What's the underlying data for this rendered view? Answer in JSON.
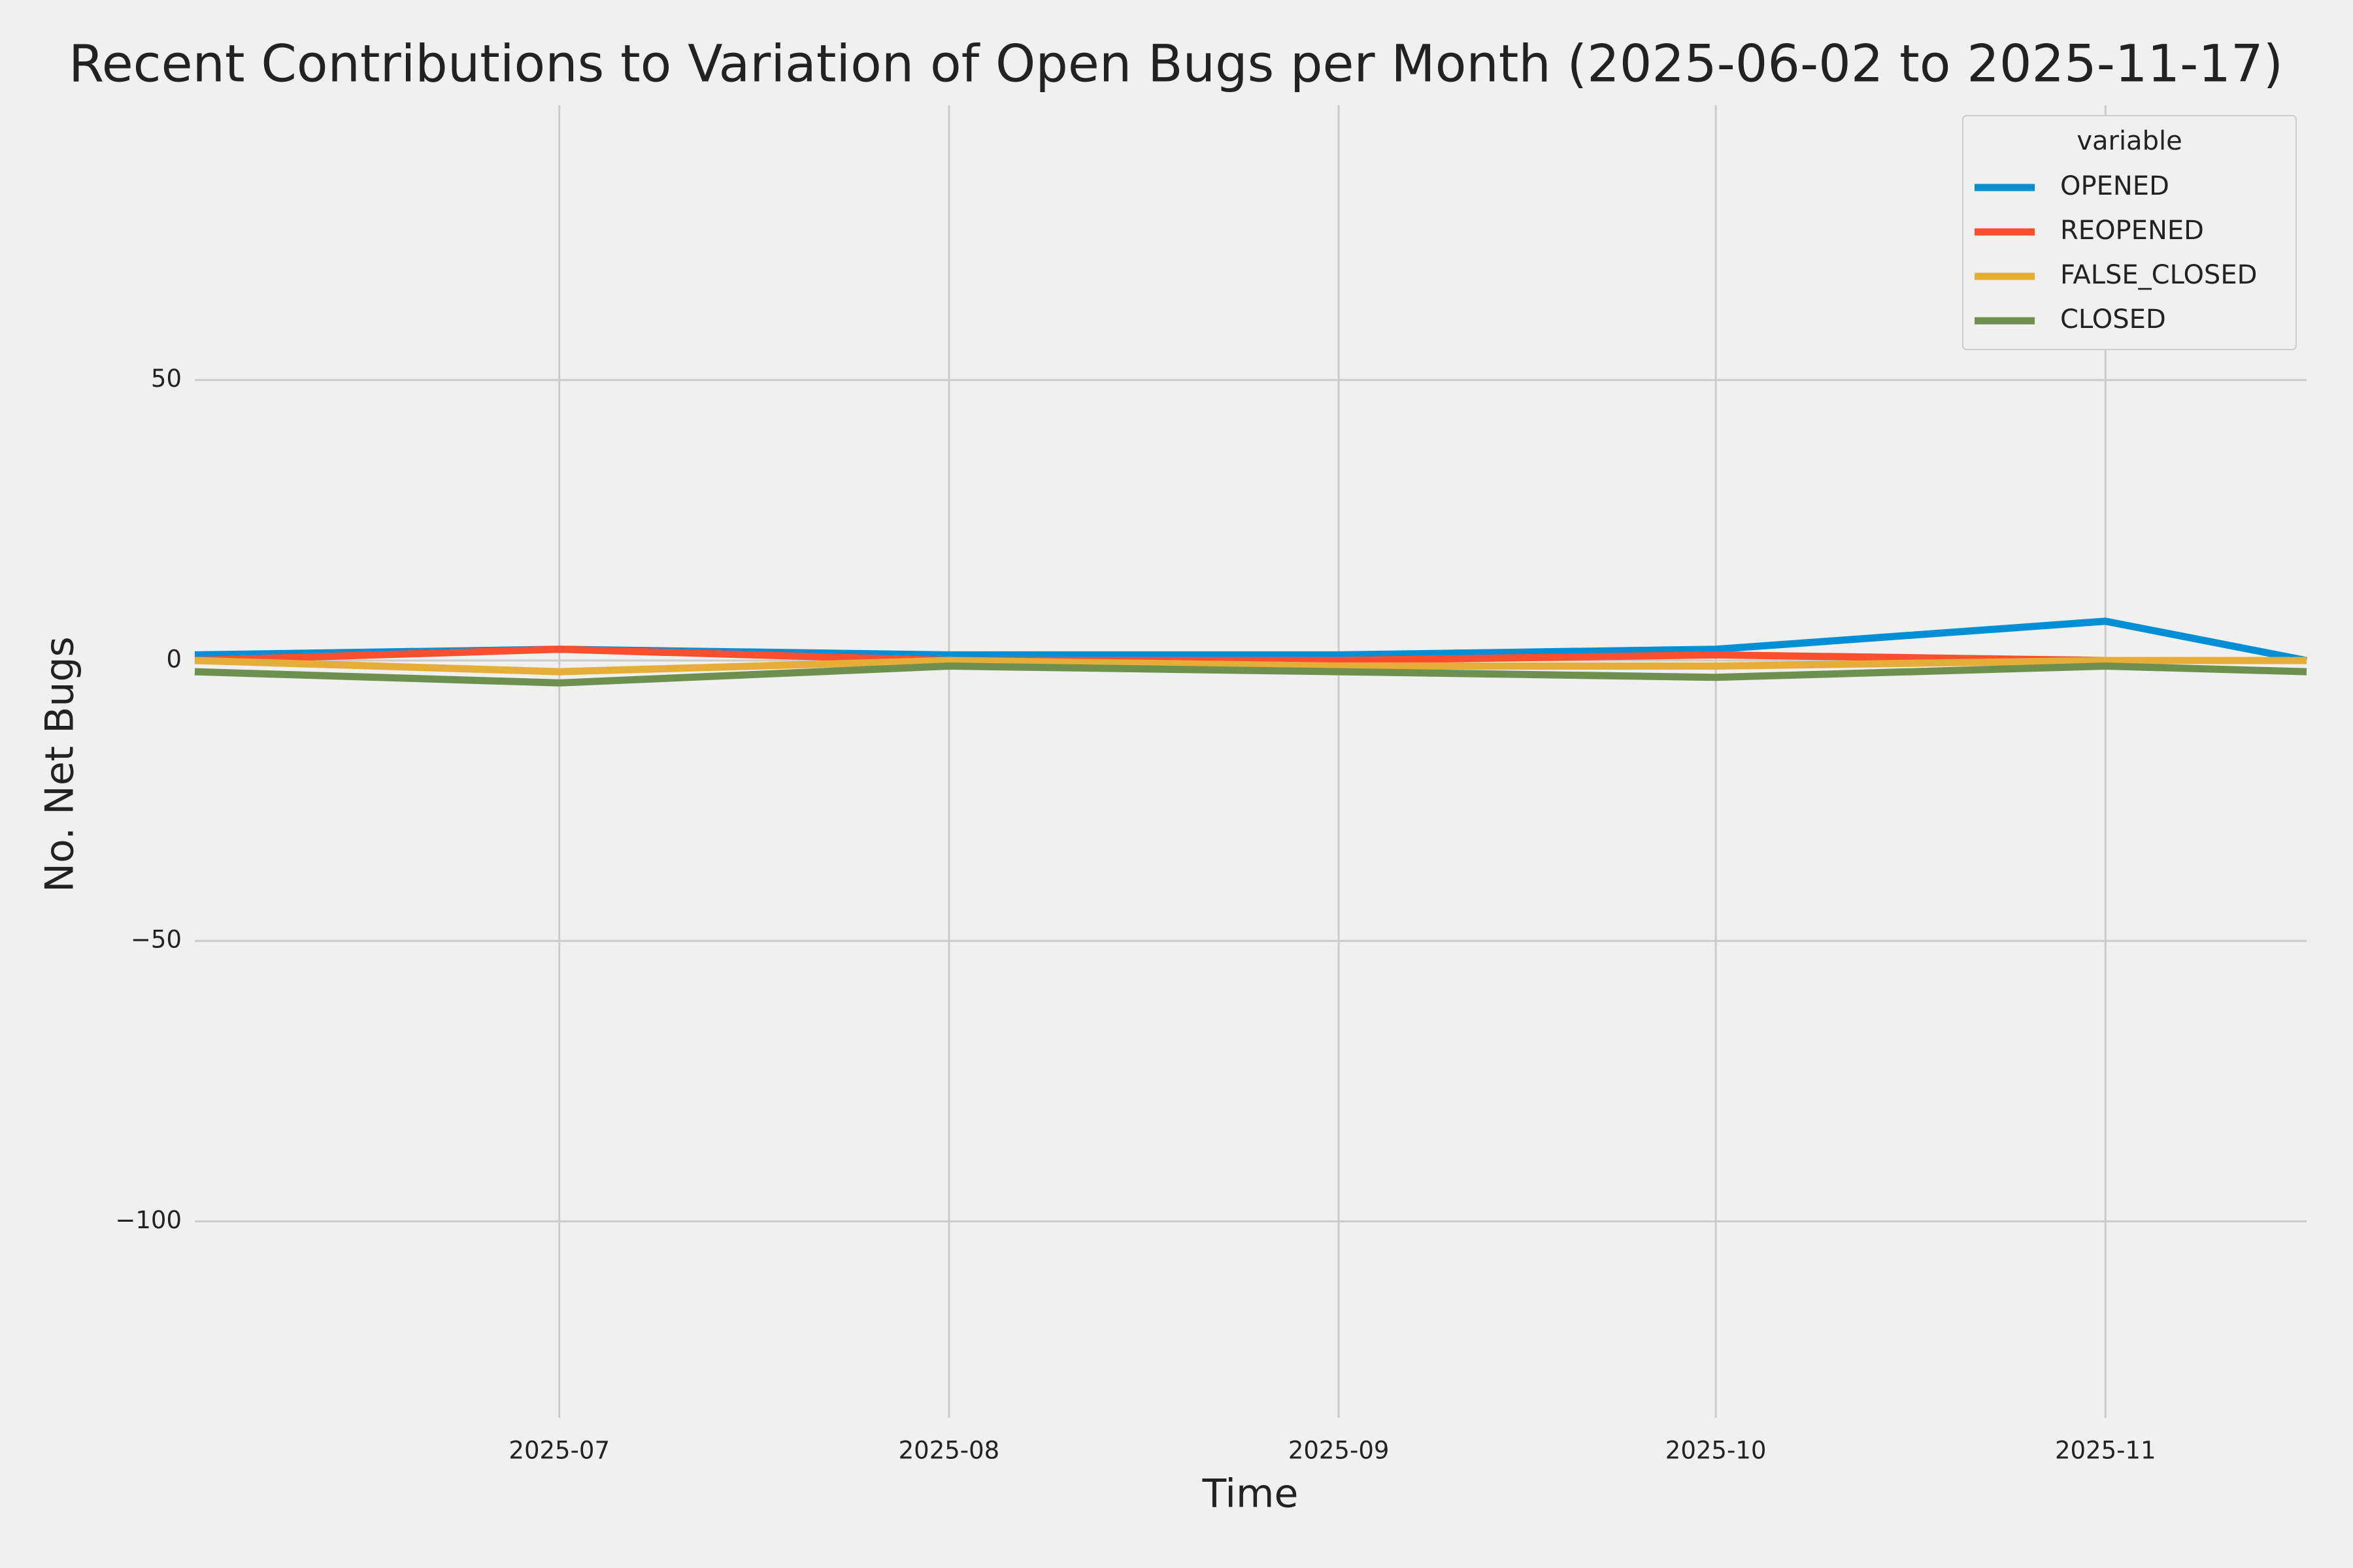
{
  "chart_data": {
    "type": "line",
    "title": "Recent Contributions to Variation of Open Bugs per Month (2025-06-02 to 2025-11-17)",
    "x_label": "Time",
    "y_label": "No. Net Bugs",
    "x": [
      "2025-06-02",
      "2025-07-01",
      "2025-08-01",
      "2025-09-01",
      "2025-10-01",
      "2025-11-01",
      "2025-11-17"
    ],
    "xlim": [
      "2025-06-02",
      "2025-11-17"
    ],
    "xticks": [
      {
        "value": "2025-07-01",
        "label": "2025-07"
      },
      {
        "value": "2025-08-01",
        "label": "2025-08"
      },
      {
        "value": "2025-09-01",
        "label": "2025-09"
      },
      {
        "value": "2025-10-01",
        "label": "2025-10"
      },
      {
        "value": "2025-11-01",
        "label": "2025-11"
      }
    ],
    "ylim": [
      -135,
      99
    ],
    "yticks": [
      50,
      0,
      {
        "value": -50,
        "label": "−50"
      },
      {
        "value": -100,
        "label": "−100"
      }
    ],
    "grid": true,
    "legend_title": "variable",
    "legend_position": "upper right",
    "series": [
      {
        "name": "OPENED",
        "color": "#008fd5",
        "values": [
          1,
          2,
          1,
          1,
          2,
          7,
          0
        ]
      },
      {
        "name": "REOPENED",
        "color": "#fc4f30",
        "values": [
          0,
          2,
          0,
          0,
          1,
          0,
          0
        ]
      },
      {
        "name": "FALSE_CLOSED",
        "color": "#e5ae38",
        "values": [
          0,
          -2,
          0,
          -1,
          -1,
          0,
          0
        ]
      },
      {
        "name": "CLOSED",
        "color": "#6d904f",
        "values": [
          -2,
          -4,
          -1,
          -2,
          -3,
          -1,
          -2
        ]
      }
    ]
  }
}
